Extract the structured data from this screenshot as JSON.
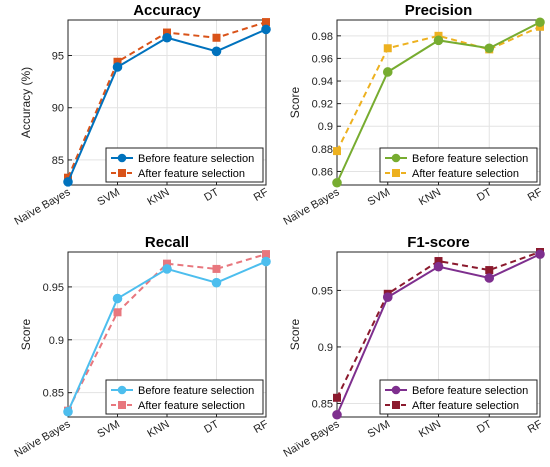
{
  "chart_data": [
    {
      "type": "line",
      "title": "Accuracy",
      "ylabel": "Accuracy (%)",
      "categories": [
        "Naïve Bayes",
        "SVM",
        "KNN",
        "DT",
        "RF"
      ],
      "ylim": [
        82.6,
        98.4
      ],
      "yticks": [
        85,
        90,
        95
      ],
      "yticklabels": [
        "85",
        "90",
        "95"
      ],
      "legend_position": "bottom-right",
      "series": [
        {
          "name": "Before feature selection",
          "values": [
            82.9,
            93.9,
            96.7,
            95.4,
            97.5
          ],
          "color": "#0072BD",
          "dash": false,
          "marker": "circle"
        },
        {
          "name": "After feature selection",
          "values": [
            83.3,
            94.4,
            97.2,
            96.7,
            98.2
          ],
          "color": "#D95319",
          "dash": true,
          "marker": "square"
        }
      ]
    },
    {
      "type": "line",
      "title": "Precision",
      "ylabel": "Score",
      "categories": [
        "Naïve Bayes",
        "SVM",
        "KNN",
        "DT",
        "RF"
      ],
      "ylim": [
        0.848,
        0.994
      ],
      "yticks": [
        0.86,
        0.88,
        0.9,
        0.92,
        0.94,
        0.96,
        0.98
      ],
      "yticklabels": [
        "0.86",
        "0.88",
        "0.9",
        "0.92",
        "0.94",
        "0.96",
        "0.98"
      ],
      "legend_position": "bottom-right",
      "series": [
        {
          "name": "Before feature selection",
          "values": [
            0.85,
            0.948,
            0.976,
            0.969,
            0.992
          ],
          "color": "#77AC30",
          "dash": false,
          "marker": "circle"
        },
        {
          "name": "After feature selection",
          "values": [
            0.878,
            0.969,
            0.98,
            0.968,
            0.988
          ],
          "color": "#EDB120",
          "dash": true,
          "marker": "square"
        }
      ]
    },
    {
      "type": "line",
      "title": "Recall",
      "ylabel": "Score",
      "categories": [
        "Naïve Bayes",
        "SVM",
        "KNN",
        "DT",
        "RF"
      ],
      "ylim": [
        0.827,
        0.983
      ],
      "yticks": [
        0.85,
        0.9,
        0.95
      ],
      "yticklabels": [
        "0.85",
        "0.9",
        "0.95"
      ],
      "legend_position": "bottom-right",
      "series": [
        {
          "name": "Before feature selection",
          "values": [
            0.832,
            0.939,
            0.967,
            0.954,
            0.974
          ],
          "color": "#4DBEEE",
          "dash": false,
          "marker": "circle"
        },
        {
          "name": "After feature selection",
          "values": [
            0.833,
            0.926,
            0.972,
            0.967,
            0.981
          ],
          "color": "#E8777E",
          "dash": true,
          "marker": "square"
        }
      ]
    },
    {
      "type": "line",
      "title": "F1-score",
      "ylabel": "Score",
      "categories": [
        "Naïve Bayes",
        "SVM",
        "KNN",
        "DT",
        "RF"
      ],
      "ylim": [
        0.838,
        0.984
      ],
      "yticks": [
        0.85,
        0.9,
        0.95
      ],
      "yticklabels": [
        "0.85",
        "0.9",
        "0.95"
      ],
      "legend_position": "bottom-right",
      "series": [
        {
          "name": "Before feature selection",
          "values": [
            0.84,
            0.944,
            0.971,
            0.961,
            0.982
          ],
          "color": "#7E2F8E",
          "dash": false,
          "marker": "circle"
        },
        {
          "name": "After feature selection",
          "values": [
            0.855,
            0.947,
            0.976,
            0.968,
            0.984
          ],
          "color": "#8B1A2E",
          "dash": true,
          "marker": "square"
        }
      ]
    }
  ]
}
